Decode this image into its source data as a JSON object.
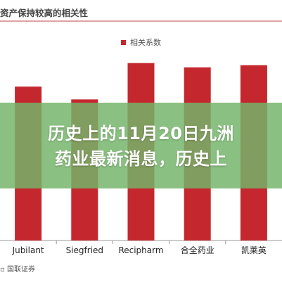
{
  "chart_data": {
    "type": "bar",
    "title": "资产保持较高的相关性",
    "categories": [
      "Jubilant",
      "Siegfried",
      "Recipharm",
      "合全药业",
      "凯莱英"
    ],
    "series": [
      {
        "name": "相关系数",
        "values": [
          0.72,
          0.66,
          0.83,
          0.81,
          0.82
        ]
      }
    ],
    "ylim": [
      0,
      1.0
    ],
    "grid": false,
    "legend_position": "top-center",
    "source": "国联证券",
    "colors": {
      "bar": "#c4282e",
      "legend": "#c4282e",
      "axis": "#999999"
    }
  },
  "overlay": {
    "line1": "历史上的11月20日九洲",
    "line2": "药业最新消息，历史上"
  }
}
